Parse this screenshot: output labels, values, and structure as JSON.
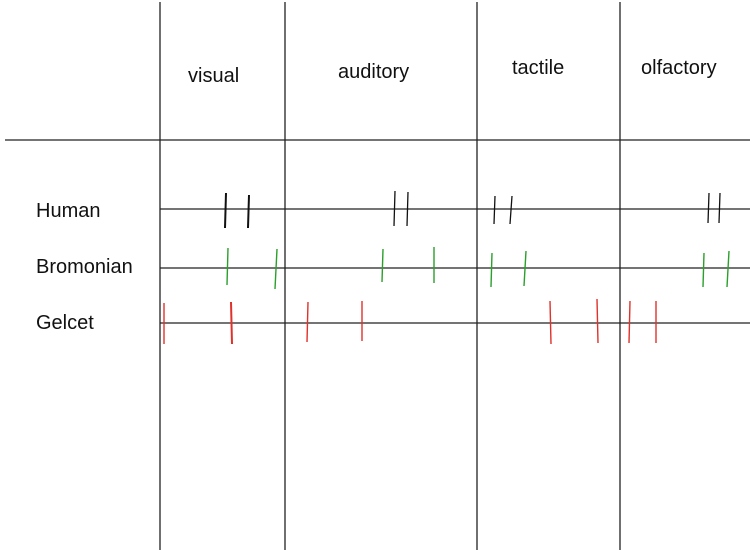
{
  "columns": [
    {
      "label": "visual"
    },
    {
      "label": "auditory"
    },
    {
      "label": "tactile"
    },
    {
      "label": "olfactory"
    }
  ],
  "rows": [
    {
      "label": "Human",
      "color": "#111111"
    },
    {
      "label": "Bromonian",
      "color": "#2aa02a"
    },
    {
      "label": "Gelcet",
      "color": "#e0312a"
    }
  ],
  "colors": {
    "grid": "#222222",
    "text": "#111111"
  }
}
